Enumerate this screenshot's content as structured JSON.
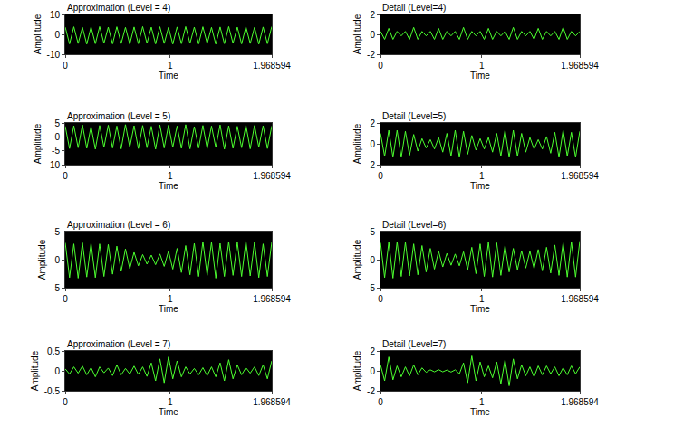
{
  "chart_data": [
    {
      "type": "line",
      "title": "Approximation (Level = 4)",
      "x_label": "Time",
      "y_label": "Amplitude",
      "color": "#4cff2f",
      "grid": false,
      "xlim": [
        0,
        1.968594
      ],
      "xticks": [
        0,
        1,
        1.968594
      ],
      "ylim": [
        -10,
        10
      ],
      "yticks": [
        -10,
        0,
        10
      ],
      "x": [
        0,
        0.041,
        0.082,
        0.123,
        0.164,
        0.205,
        0.246,
        0.287,
        0.328,
        0.369,
        0.41,
        0.451,
        0.492,
        0.533,
        0.574,
        0.615,
        0.656,
        0.697,
        0.738,
        0.779,
        0.82,
        0.861,
        0.902,
        0.943,
        0.984,
        1.025,
        1.066,
        1.107,
        1.148,
        1.189,
        1.23,
        1.271,
        1.312,
        1.353,
        1.394,
        1.435,
        1.476,
        1.517,
        1.558,
        1.599,
        1.64,
        1.681,
        1.722,
        1.763,
        1.804,
        1.845,
        1.886,
        1.927,
        1.968594
      ],
      "values": [
        3.6,
        -4.8,
        3.8,
        -4.6,
        3.5,
        -4.9,
        3.7,
        -4.7,
        3.9,
        -4.5,
        3.6,
        -4.8,
        3.8,
        -4.6,
        3.5,
        -4.9,
        3.7,
        -4.7,
        3.9,
        -4.5,
        3.6,
        -4.8,
        3.8,
        -4.6,
        3.5,
        -4.9,
        3.7,
        -4.7,
        3.9,
        -4.5,
        3.6,
        -4.8,
        3.8,
        -4.6,
        3.5,
        -4.9,
        3.7,
        -4.7,
        3.9,
        -4.5,
        3.6,
        -4.8,
        3.8,
        -4.6,
        3.5,
        -4.9,
        3.7,
        -4.7,
        3.9
      ]
    },
    {
      "type": "line",
      "title": "Detail (Level=4)",
      "x_label": "Time",
      "y_label": "Amplitude",
      "color": "#4cff2f",
      "grid": false,
      "xlim": [
        0,
        1.968594
      ],
      "xticks": [
        0,
        1,
        1.968594
      ],
      "ylim": [
        -2,
        2
      ],
      "yticks": [
        -2,
        0,
        2
      ],
      "x": [
        0,
        0.041,
        0.082,
        0.123,
        0.164,
        0.205,
        0.246,
        0.287,
        0.328,
        0.369,
        0.41,
        0.451,
        0.492,
        0.533,
        0.574,
        0.615,
        0.656,
        0.697,
        0.738,
        0.779,
        0.82,
        0.861,
        0.902,
        0.943,
        0.984,
        1.025,
        1.066,
        1.107,
        1.148,
        1.189,
        1.23,
        1.271,
        1.312,
        1.353,
        1.394,
        1.435,
        1.476,
        1.517,
        1.558,
        1.599,
        1.64,
        1.681,
        1.722,
        1.763,
        1.804,
        1.845,
        1.886,
        1.927,
        1.968594
      ],
      "values": [
        0.3,
        -0.5,
        0.6,
        -0.5,
        0.3,
        -0.15,
        0.3,
        -0.5,
        0.7,
        -0.5,
        0.3,
        -0.15,
        0.3,
        -0.5,
        0.6,
        -0.5,
        0.3,
        -0.15,
        0.3,
        -0.5,
        0.7,
        -0.5,
        0.3,
        -0.15,
        0.3,
        -0.5,
        0.6,
        -0.5,
        0.3,
        -0.15,
        0.3,
        -0.5,
        0.7,
        -0.5,
        0.3,
        -0.15,
        0.3,
        -0.5,
        0.6,
        -0.5,
        0.3,
        -0.15,
        0.3,
        -0.5,
        0.7,
        -0.5,
        0.3,
        -0.15,
        0.3
      ]
    },
    {
      "type": "line",
      "title": "Approximation (Level = 5)",
      "x_label": "Time",
      "y_label": "Amplitude",
      "color": "#4cff2f",
      "grid": false,
      "xlim": [
        0,
        1.968594
      ],
      "xticks": [
        0,
        1,
        1.968594
      ],
      "ylim": [
        -10,
        5
      ],
      "yticks": [
        -10,
        -5,
        0,
        5
      ],
      "x": [
        0,
        0.041,
        0.082,
        0.123,
        0.164,
        0.205,
        0.246,
        0.287,
        0.328,
        0.369,
        0.41,
        0.451,
        0.492,
        0.533,
        0.574,
        0.615,
        0.656,
        0.697,
        0.738,
        0.779,
        0.82,
        0.861,
        0.902,
        0.943,
        0.984,
        1.025,
        1.066,
        1.107,
        1.148,
        1.189,
        1.23,
        1.271,
        1.312,
        1.353,
        1.394,
        1.435,
        1.476,
        1.517,
        1.558,
        1.599,
        1.64,
        1.681,
        1.722,
        1.763,
        1.804,
        1.845,
        1.886,
        1.927,
        1.968594
      ],
      "values": [
        3.8,
        -4.2,
        4.0,
        -3.9,
        4.3,
        -4.1,
        3.7,
        -4.4,
        4.1,
        -3.8,
        4.2,
        -4.0,
        3.9,
        -4.3,
        4.4,
        -3.7,
        4.0,
        -4.2,
        4.1,
        -3.9,
        3.8,
        -4.4,
        4.3,
        -4.0,
        4.2,
        -3.8,
        3.9,
        -4.1,
        4.4,
        -4.3,
        3.7,
        -4.0,
        4.1,
        -4.2,
        3.9,
        -3.8,
        4.3,
        -4.4,
        4.0,
        -4.1,
        3.8,
        -3.9,
        4.2,
        -4.3,
        4.1,
        -3.7,
        4.0,
        -4.2,
        3.9
      ]
    },
    {
      "type": "line",
      "title": "Detail (Level=5)",
      "x_label": "Time",
      "y_label": "Amplitude",
      "color": "#4cff2f",
      "grid": false,
      "xlim": [
        0,
        1.968594
      ],
      "xticks": [
        0,
        1,
        1.968594
      ],
      "ylim": [
        -2,
        2
      ],
      "yticks": [
        -2,
        0,
        2
      ],
      "x": [
        0,
        0.041,
        0.082,
        0.123,
        0.164,
        0.205,
        0.246,
        0.287,
        0.328,
        0.369,
        0.41,
        0.451,
        0.492,
        0.533,
        0.574,
        0.615,
        0.656,
        0.697,
        0.738,
        0.779,
        0.82,
        0.861,
        0.902,
        0.943,
        0.984,
        1.025,
        1.066,
        1.107,
        1.148,
        1.189,
        1.23,
        1.271,
        1.312,
        1.353,
        1.394,
        1.435,
        1.476,
        1.517,
        1.558,
        1.599,
        1.64,
        1.681,
        1.722,
        1.763,
        1.804,
        1.845,
        1.886,
        1.927,
        1.968594
      ],
      "values": [
        1.0,
        -1.2,
        1.3,
        -1.3,
        1.3,
        -1.3,
        1.2,
        -1.1,
        0.9,
        -0.7,
        0.5,
        -0.4,
        0.4,
        -0.5,
        0.6,
        -0.8,
        1.0,
        -1.2,
        1.3,
        -1.3,
        1.2,
        -1.0,
        0.8,
        -0.6,
        0.5,
        -0.5,
        0.6,
        -0.8,
        1.0,
        -1.2,
        1.3,
        -1.3,
        1.3,
        -1.2,
        1.0,
        -0.8,
        0.6,
        -0.5,
        0.4,
        -0.5,
        0.7,
        -0.9,
        1.1,
        -1.3,
        1.3,
        -1.2,
        1.1,
        -1.3,
        1.2
      ]
    },
    {
      "type": "line",
      "title": "Approximation (Level = 6)",
      "x_label": "Time",
      "y_label": "Amplitude",
      "color": "#4cff2f",
      "grid": false,
      "xlim": [
        0,
        1.968594
      ],
      "xticks": [
        0,
        1,
        1.968594
      ],
      "ylim": [
        -5,
        5
      ],
      "yticks": [
        -5,
        0,
        5
      ],
      "x": [
        0,
        0.041,
        0.082,
        0.123,
        0.164,
        0.205,
        0.246,
        0.287,
        0.328,
        0.369,
        0.41,
        0.451,
        0.492,
        0.533,
        0.574,
        0.615,
        0.656,
        0.697,
        0.738,
        0.779,
        0.82,
        0.861,
        0.902,
        0.943,
        0.984,
        1.025,
        1.066,
        1.107,
        1.148,
        1.189,
        1.23,
        1.271,
        1.312,
        1.353,
        1.394,
        1.435,
        1.476,
        1.517,
        1.558,
        1.599,
        1.64,
        1.681,
        1.722,
        1.763,
        1.804,
        1.845,
        1.886,
        1.927,
        1.968594
      ],
      "values": [
        3.0,
        -3.2,
        2.8,
        -3.3,
        3.0,
        -3.1,
        2.9,
        -3.2,
        2.8,
        -3.0,
        2.7,
        -2.6,
        2.4,
        -2.1,
        1.9,
        -1.6,
        1.3,
        -1.1,
        0.9,
        -0.8,
        0.8,
        -0.9,
        1.0,
        -1.2,
        1.5,
        -1.7,
        2.0,
        -2.3,
        2.5,
        -2.7,
        2.9,
        -3.0,
        3.2,
        -2.8,
        3.1,
        -3.3,
        2.9,
        -3.0,
        3.2,
        -2.8,
        3.1,
        -3.0,
        3.3,
        -2.9,
        3.1,
        -3.2,
        2.8,
        -3.0,
        3.1
      ]
    },
    {
      "type": "line",
      "title": "Detail (Level=6)",
      "x_label": "Time",
      "y_label": "Amplitude",
      "color": "#4cff2f",
      "grid": false,
      "xlim": [
        0,
        1.968594
      ],
      "xticks": [
        0,
        1,
        1.968594
      ],
      "ylim": [
        -5,
        5
      ],
      "yticks": [
        -5,
        0,
        5
      ],
      "x": [
        0,
        0.041,
        0.082,
        0.123,
        0.164,
        0.205,
        0.246,
        0.287,
        0.328,
        0.369,
        0.41,
        0.451,
        0.492,
        0.533,
        0.574,
        0.615,
        0.656,
        0.697,
        0.738,
        0.779,
        0.82,
        0.861,
        0.902,
        0.943,
        0.984,
        1.025,
        1.066,
        1.107,
        1.148,
        1.189,
        1.23,
        1.271,
        1.312,
        1.353,
        1.394,
        1.435,
        1.476,
        1.517,
        1.558,
        1.599,
        1.64,
        1.681,
        1.722,
        1.763,
        1.804,
        1.845,
        1.886,
        1.927,
        1.968594
      ],
      "values": [
        3.0,
        -3.2,
        3.1,
        -3.3,
        3.2,
        -3.0,
        3.1,
        -2.9,
        2.8,
        -2.7,
        2.5,
        -2.2,
        2.0,
        -1.7,
        1.5,
        -1.3,
        1.1,
        -1.0,
        1.0,
        -1.1,
        1.4,
        -1.8,
        2.2,
        -2.5,
        2.8,
        -3.0,
        3.1,
        -3.1,
        3.0,
        -2.8,
        2.5,
        -2.2,
        2.0,
        -1.8,
        1.6,
        -1.5,
        1.5,
        -1.6,
        1.8,
        -2.0,
        2.2,
        -2.4,
        2.6,
        -2.8,
        3.0,
        -3.1,
        3.2,
        -3.1,
        3.3
      ]
    },
    {
      "type": "line",
      "title": "Approximation (Level = 7)",
      "x_label": "Time",
      "y_label": "Amplitude",
      "color": "#4cff2f",
      "grid": false,
      "xlim": [
        0,
        1.968594
      ],
      "xticks": [
        0,
        1,
        1.968594
      ],
      "ylim": [
        -0.5,
        0.5
      ],
      "yticks": [
        -0.5,
        0,
        0.5
      ],
      "x": [
        0,
        0.041,
        0.082,
        0.123,
        0.164,
        0.205,
        0.246,
        0.287,
        0.328,
        0.369,
        0.41,
        0.451,
        0.492,
        0.533,
        0.574,
        0.615,
        0.656,
        0.697,
        0.738,
        0.779,
        0.82,
        0.861,
        0.902,
        0.943,
        0.984,
        1.025,
        1.066,
        1.107,
        1.148,
        1.189,
        1.23,
        1.271,
        1.312,
        1.353,
        1.394,
        1.435,
        1.476,
        1.517,
        1.558,
        1.599,
        1.64,
        1.681,
        1.722,
        1.763,
        1.804,
        1.845,
        1.886,
        1.927,
        1.968594
      ],
      "values": [
        0.05,
        -0.08,
        0.1,
        -0.06,
        0.12,
        -0.1,
        0.08,
        -0.15,
        0.1,
        -0.05,
        0.07,
        -0.12,
        0.15,
        -0.1,
        0.06,
        -0.08,
        0.12,
        -0.09,
        0.1,
        -0.14,
        0.2,
        -0.25,
        0.3,
        -0.3,
        0.35,
        -0.2,
        0.25,
        -0.15,
        0.1,
        -0.08,
        0.06,
        -0.1,
        0.08,
        -0.12,
        0.1,
        -0.15,
        0.2,
        -0.25,
        0.28,
        -0.2,
        0.15,
        -0.1,
        0.08,
        -0.06,
        0.1,
        -0.12,
        0.15,
        -0.2,
        0.25
      ]
    },
    {
      "type": "line",
      "title": "Detail (Level=7)",
      "x_label": "Time",
      "y_label": "Amplitude",
      "color": "#4cff2f",
      "grid": false,
      "xlim": [
        0,
        1.968594
      ],
      "xticks": [
        0,
        1,
        1.968594
      ],
      "ylim": [
        -2,
        2
      ],
      "yticks": [
        -2,
        0,
        2
      ],
      "x": [
        0,
        0.041,
        0.082,
        0.123,
        0.164,
        0.205,
        0.246,
        0.287,
        0.328,
        0.369,
        0.41,
        0.451,
        0.492,
        0.533,
        0.574,
        0.615,
        0.656,
        0.697,
        0.738,
        0.779,
        0.82,
        0.861,
        0.902,
        0.943,
        0.984,
        1.025,
        1.066,
        1.107,
        1.148,
        1.189,
        1.23,
        1.271,
        1.312,
        1.353,
        1.394,
        1.435,
        1.476,
        1.517,
        1.558,
        1.599,
        1.64,
        1.681,
        1.722,
        1.763,
        1.804,
        1.845,
        1.886,
        1.927,
        1.968594
      ],
      "values": [
        0.6,
        -1.0,
        1.4,
        -0.9,
        0.5,
        -0.6,
        0.4,
        -0.5,
        0.6,
        -0.4,
        0.3,
        -0.15,
        0.1,
        -0.1,
        0.12,
        -0.1,
        0.08,
        -0.12,
        0.1,
        -0.3,
        0.8,
        -1.2,
        1.5,
        -1.0,
        0.9,
        -0.6,
        0.5,
        -0.7,
        0.9,
        -1.3,
        1.1,
        -1.5,
        1.2,
        -0.8,
        0.6,
        -0.5,
        0.4,
        -0.6,
        0.5,
        -0.4,
        0.5,
        -0.3,
        0.4,
        -0.5,
        0.3,
        -0.4,
        0.5,
        -0.3,
        0.4
      ]
    }
  ]
}
